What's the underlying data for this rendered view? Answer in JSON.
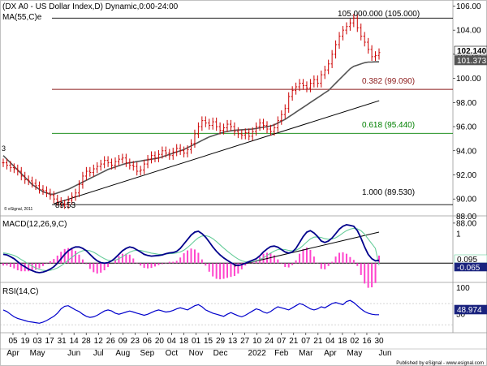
{
  "chart_data": [
    {
      "type": "line",
      "panel": "price",
      "title": "(DX A0 - US Dollar Index,D) Dynamic,0:00-24:00",
      "ma_label": "MA(55,C)e",
      "copyright": "© eSignal, 2011",
      "ylim": [
        88.6,
        106.5
      ],
      "y_ticks": [
        "106.00",
        "104.00",
        "102.00",
        "100.00",
        "98.00",
        "96.00",
        "94.00",
        "92.00",
        "90.00",
        "88.00"
      ],
      "last_price_label": "102.140",
      "last_ma_label": "101.373",
      "last_price": 102.14,
      "last_ma": 101.373,
      "left_edge_label": "3",
      "low_label": "89.53",
      "low_value": 89.53,
      "high_value": 105.0,
      "fib_levels": [
        {
          "label": "105.000.000 (105.000)",
          "value": 105.0,
          "color": "#000000"
        },
        {
          "label": "0.382 (99.090)",
          "value": 99.09,
          "color": "#8b1a1a"
        },
        {
          "label": "0.618 (95.440)",
          "value": 95.44,
          "color": "#008000"
        },
        {
          "label": "1.000 (89.530)",
          "value": 89.53,
          "color": "#000000"
        }
      ],
      "trendline": {
        "from": {
          "bar": 14,
          "value": 89.6
        },
        "to": {
          "bar": 100,
          "value": 97.8
        }
      },
      "series": [
        {
          "name": "",
          "color": "#cc0000",
          "values": [
            93.0,
            92.8,
            92.6,
            92.5,
            92.3,
            91.9,
            91.6,
            91.5,
            91.3,
            91.1,
            90.8,
            90.7,
            90.5,
            90.3,
            90.0,
            89.8,
            89.6,
            89.53,
            89.9,
            90.2,
            90.5,
            91.2,
            91.9,
            92.3,
            92.2,
            92.5,
            92.7,
            92.9,
            93.2,
            93.0,
            92.8,
            93.1,
            93.3,
            93.4,
            93.0,
            92.8,
            92.7,
            92.3,
            92.4,
            92.9,
            93.3,
            93.6,
            93.4,
            93.7,
            94.0,
            93.8,
            93.6,
            93.9,
            94.2,
            94.0,
            93.8,
            94.1,
            94.6,
            95.4,
            96.0,
            96.5,
            96.3,
            96.1,
            96.4,
            96.0,
            95.7,
            95.9,
            96.2,
            96.0,
            95.6,
            95.4,
            95.3,
            95.5,
            95.2,
            95.6,
            96.0,
            96.3,
            96.1,
            95.8,
            95.6,
            95.9,
            96.5,
            97.0,
            97.5,
            98.5,
            99.0,
            99.3,
            99.6,
            99.4,
            99.2,
            99.6,
            99.9,
            99.6,
            100.3,
            100.7,
            101.2,
            102.0,
            102.8,
            103.5,
            104.0,
            104.3,
            104.6,
            105.0,
            104.2,
            103.5,
            103.0,
            102.4,
            101.8,
            101.9,
            102.14
          ]
        },
        {
          "name": "",
          "color": "#555555",
          "values": [
            93.6,
            93.3,
            93.0,
            92.7,
            92.4,
            92.1,
            91.8,
            91.5,
            91.2,
            91.0,
            90.8,
            90.6,
            90.5,
            90.4,
            90.4,
            90.5,
            90.6,
            90.7,
            90.8,
            90.95,
            91.1,
            91.25,
            91.4,
            91.55,
            91.7,
            91.85,
            92.0,
            92.15,
            92.3,
            92.45,
            92.55,
            92.65,
            92.75,
            92.85,
            92.95,
            93.0,
            93.05,
            93.1,
            93.15,
            93.2,
            93.25,
            93.3,
            93.35,
            93.4,
            93.5,
            93.6,
            93.7,
            93.8,
            93.9,
            94.0,
            94.1,
            94.25,
            94.4,
            94.55,
            94.7,
            94.85,
            95.0,
            95.15,
            95.25,
            95.35,
            95.45,
            95.55,
            95.6,
            95.65,
            95.7,
            95.72,
            95.74,
            95.76,
            95.78,
            95.8,
            95.85,
            95.9,
            95.95,
            96.0,
            96.05,
            96.15,
            96.3,
            96.45,
            96.6,
            96.8,
            97.0,
            97.2,
            97.4,
            97.6,
            97.8,
            98.0,
            98.2,
            98.4,
            98.6,
            98.8,
            99.0,
            99.3,
            99.6,
            99.9,
            100.2,
            100.5,
            100.8,
            101.0,
            101.1,
            101.2,
            101.3,
            101.35,
            101.36,
            101.37,
            101.373
          ]
        }
      ]
    },
    {
      "type": "line",
      "panel": "macd",
      "title": "MACD(12,26,9,C)",
      "ylim": [
        -0.65,
        1.6
      ],
      "y_ticks": [
        "1"
      ],
      "last_labels": [
        "0.095",
        "-0.065"
      ],
      "last_values": [
        0.095,
        -0.065
      ],
      "trendline": {
        "from": {
          "bar": 64,
          "value": -0.1
        },
        "to": {
          "bar": 104,
          "value": 1.05
        }
      },
      "series": [
        {
          "name": "",
          "color": "#00008b",
          "values": [
            0.3,
            0.28,
            0.22,
            0.15,
            0.05,
            -0.05,
            -0.12,
            -0.2,
            -0.25,
            -0.3,
            -0.32,
            -0.3,
            -0.26,
            -0.2,
            -0.12,
            0.0,
            0.15,
            0.3,
            0.42,
            0.5,
            0.55,
            0.55,
            0.5,
            0.42,
            0.3,
            0.18,
            0.08,
            0.02,
            0.0,
            0.02,
            0.08,
            0.18,
            0.3,
            0.42,
            0.5,
            0.55,
            0.52,
            0.45,
            0.38,
            0.3,
            0.26,
            0.24,
            0.25,
            0.26,
            0.28,
            0.32,
            0.35,
            0.36,
            0.4,
            0.5,
            0.65,
            0.8,
            0.95,
            1.05,
            1.08,
            1.0,
            0.88,
            0.72,
            0.55,
            0.4,
            0.28,
            0.18,
            0.1,
            0.02,
            -0.05,
            -0.08,
            -0.05,
            0.0,
            0.05,
            0.1,
            0.15,
            0.25,
            0.38,
            0.48,
            0.56,
            0.58,
            0.54,
            0.46,
            0.38,
            0.34,
            0.38,
            0.5,
            0.7,
            0.9,
            1.05,
            1.1,
            1.02,
            0.9,
            0.75,
            0.7,
            0.75,
            0.85,
            1.0,
            1.15,
            1.25,
            1.3,
            1.28,
            1.25,
            1.1,
            0.85,
            0.55,
            0.3,
            0.15,
            0.08,
            0.095
          ]
        },
        {
          "name": "",
          "color": "#66cc99",
          "values": [
            0.35,
            0.33,
            0.3,
            0.26,
            0.2,
            0.12,
            0.05,
            -0.03,
            -0.1,
            -0.16,
            -0.21,
            -0.24,
            -0.25,
            -0.24,
            -0.21,
            -0.16,
            -0.09,
            0.0,
            0.1,
            0.2,
            0.29,
            0.37,
            0.42,
            0.44,
            0.42,
            0.37,
            0.3,
            0.22,
            0.15,
            0.1,
            0.08,
            0.1,
            0.15,
            0.22,
            0.3,
            0.37,
            0.42,
            0.44,
            0.43,
            0.4,
            0.37,
            0.34,
            0.32,
            0.3,
            0.3,
            0.31,
            0.32,
            0.33,
            0.35,
            0.38,
            0.44,
            0.53,
            0.64,
            0.76,
            0.86,
            0.92,
            0.93,
            0.9,
            0.83,
            0.73,
            0.62,
            0.51,
            0.41,
            0.31,
            0.22,
            0.14,
            0.08,
            0.05,
            0.04,
            0.05,
            0.08,
            0.12,
            0.18,
            0.26,
            0.34,
            0.41,
            0.46,
            0.47,
            0.46,
            0.43,
            0.42,
            0.44,
            0.5,
            0.6,
            0.72,
            0.82,
            0.88,
            0.89,
            0.87,
            0.83,
            0.81,
            0.82,
            0.86,
            0.93,
            1.02,
            1.1,
            1.15,
            1.18,
            1.16,
            1.1,
            0.98,
            0.82,
            0.66,
            0.5,
            -0.065
          ]
        }
      ]
    },
    {
      "type": "line",
      "panel": "rsi",
      "title": "RSI(14,C)",
      "ylim": [
        15,
        110
      ],
      "y_ticks": [
        "100",
        "50"
      ],
      "last_label": "48.974",
      "last_value": 48.974,
      "guide_levels": [
        70,
        30
      ],
      "series": [
        {
          "name": "",
          "color": "#0000cc",
          "values": [
            58,
            55,
            50,
            45,
            42,
            40,
            38,
            36,
            35,
            34,
            33,
            35,
            38,
            42,
            46,
            52,
            60,
            65,
            66,
            62,
            58,
            55,
            50,
            46,
            44,
            45,
            48,
            52,
            56,
            58,
            56,
            52,
            50,
            52,
            54,
            56,
            54,
            52,
            50,
            48,
            50,
            53,
            56,
            58,
            56,
            54,
            55,
            57,
            60,
            62,
            60,
            58,
            62,
            66,
            68,
            64,
            58,
            55,
            52,
            50,
            48,
            46,
            50,
            53,
            50,
            47,
            45,
            48,
            52,
            56,
            60,
            58,
            54,
            52,
            55,
            60,
            64,
            62,
            60,
            58,
            62,
            66,
            70,
            68,
            64,
            60,
            58,
            60,
            64,
            62,
            66,
            70,
            72,
            70,
            68,
            74,
            76,
            72,
            66,
            60,
            55,
            52,
            50,
            49,
            48.974
          ]
        }
      ]
    }
  ],
  "x_axis": {
    "day_ticks": [
      "05",
      "19",
      "03",
      "17",
      "31",
      "14",
      "28",
      "12",
      "26",
      "09",
      "23",
      "06",
      "20",
      "04",
      "18",
      "01",
      "15",
      "29",
      "13",
      "27",
      "10",
      "24",
      "07",
      "21",
      "07",
      "21",
      "04",
      "18",
      "02",
      "16",
      "30"
    ],
    "month_labels": [
      {
        "label": "Apr",
        "tick": 0
      },
      {
        "label": "May",
        "tick": 2
      },
      {
        "label": "Jun",
        "tick": 5
      },
      {
        "label": "Jul",
        "tick": 7
      },
      {
        "label": "Aug",
        "tick": 9
      },
      {
        "label": "Sep",
        "tick": 11
      },
      {
        "label": "Oct",
        "tick": 13
      },
      {
        "label": "Nov",
        "tick": 15
      },
      {
        "label": "Dec",
        "tick": 17
      },
      {
        "label": "2022",
        "tick": 20
      },
      {
        "label": "Feb",
        "tick": 22
      },
      {
        "label": "Mar",
        "tick": 24
      },
      {
        "label": "Apr",
        "tick": 26
      },
      {
        "label": "May",
        "tick": 28
      },
      {
        "label": "Jun",
        "tick": 30.5
      }
    ]
  },
  "footer": {
    "text": "Published by eSignal - www.esignal.com"
  }
}
